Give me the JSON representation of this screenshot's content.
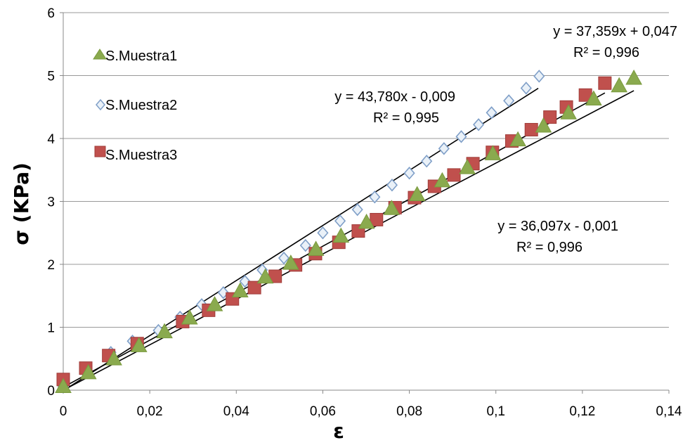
{
  "chart_data": {
    "type": "scatter",
    "title": "",
    "xlabel": "ε",
    "ylabel": "σ  (KPa)",
    "xlim": [
      0,
      0.14
    ],
    "ylim": [
      0,
      6
    ],
    "x_ticks": [
      "0",
      "0,02",
      "0,04",
      "0,06",
      "0,08",
      "0,1",
      "0,12",
      "0,14"
    ],
    "y_ticks": [
      "0",
      "1",
      "2",
      "3",
      "4",
      "5",
      "6"
    ],
    "grid": "horizontal",
    "legend": "top-left",
    "series": [
      {
        "name": "S.Muestra1",
        "marker": "triangle",
        "color": "#8aaa4e",
        "x": [
          0,
          0.0058,
          0.0117,
          0.0175,
          0.0234,
          0.0292,
          0.035,
          0.0409,
          0.0467,
          0.0526,
          0.0584,
          0.0642,
          0.0701,
          0.0759,
          0.0818,
          0.0876,
          0.0934,
          0.0993,
          0.1051,
          0.111,
          0.1168,
          0.1226,
          0.1285,
          0.1319
        ],
        "y": [
          0.05,
          0.27,
          0.49,
          0.7,
          0.92,
          1.14,
          1.35,
          1.57,
          1.79,
          2.01,
          2.23,
          2.44,
          2.66,
          2.88,
          3.1,
          3.32,
          3.53,
          3.75,
          3.97,
          4.19,
          4.4,
          4.62,
          4.83,
          4.95
        ],
        "trendline": {
          "slope": 36.097,
          "intercept": -0.001,
          "x_range": [
            0,
            0.1319
          ]
        }
      },
      {
        "name": "S.Muestra2",
        "marker": "diamond",
        "color": "#b8cce4",
        "x": [
          0,
          0.005,
          0.011,
          0.016,
          0.022,
          0.027,
          0.032,
          0.037,
          0.042,
          0.046,
          0.051,
          0.056,
          0.06,
          0.064,
          0.068,
          0.072,
          0.076,
          0.08,
          0.084,
          0.088,
          0.092,
          0.096,
          0.099,
          0.103,
          0.107,
          0.11
        ],
        "y": [
          0.05,
          0.33,
          0.6,
          0.78,
          0.95,
          1.16,
          1.36,
          1.55,
          1.73,
          1.91,
          2.1,
          2.3,
          2.5,
          2.69,
          2.87,
          3.07,
          3.26,
          3.45,
          3.64,
          3.84,
          4.03,
          4.22,
          4.41,
          4.6,
          4.8,
          4.99
        ],
        "trendline": {
          "slope": 43.78,
          "intercept": -0.009,
          "x_range": [
            0,
            0.1098
          ]
        }
      },
      {
        "name": "S.Muestra3",
        "marker": "square",
        "color": "#c0504d",
        "x": [
          0,
          0.0052,
          0.0105,
          0.0171,
          0.0276,
          0.0336,
          0.0391,
          0.0442,
          0.049,
          0.0537,
          0.0583,
          0.0637,
          0.0682,
          0.0724,
          0.0767,
          0.0812,
          0.0858,
          0.0903,
          0.0947,
          0.0992,
          0.1037,
          0.1082,
          0.1125,
          0.1163,
          0.1207,
          0.1252
        ],
        "y": [
          0.17,
          0.35,
          0.55,
          0.74,
          1.09,
          1.27,
          1.45,
          1.63,
          1.81,
          1.99,
          2.17,
          2.35,
          2.53,
          2.71,
          2.9,
          3.06,
          3.24,
          3.42,
          3.6,
          3.78,
          3.96,
          4.14,
          4.34,
          4.5,
          4.69,
          4.88
        ],
        "trendline": {
          "slope": 37.359,
          "intercept": 0.047,
          "x_range": [
            0,
            0.1252
          ]
        }
      }
    ],
    "annotations": [
      {
        "line1": "y = 37,359x + 0,047",
        "line2": "R² = 0,996"
      },
      {
        "line1": "y = 43,780x - 0,009",
        "line2": "R² = 0,995"
      },
      {
        "line1": "y = 36,097x - 0,001",
        "line2": "R² = 0,996"
      }
    ],
    "colors": {
      "gridline": "#999999",
      "trendline": "#000000",
      "axis": "#888888"
    }
  }
}
